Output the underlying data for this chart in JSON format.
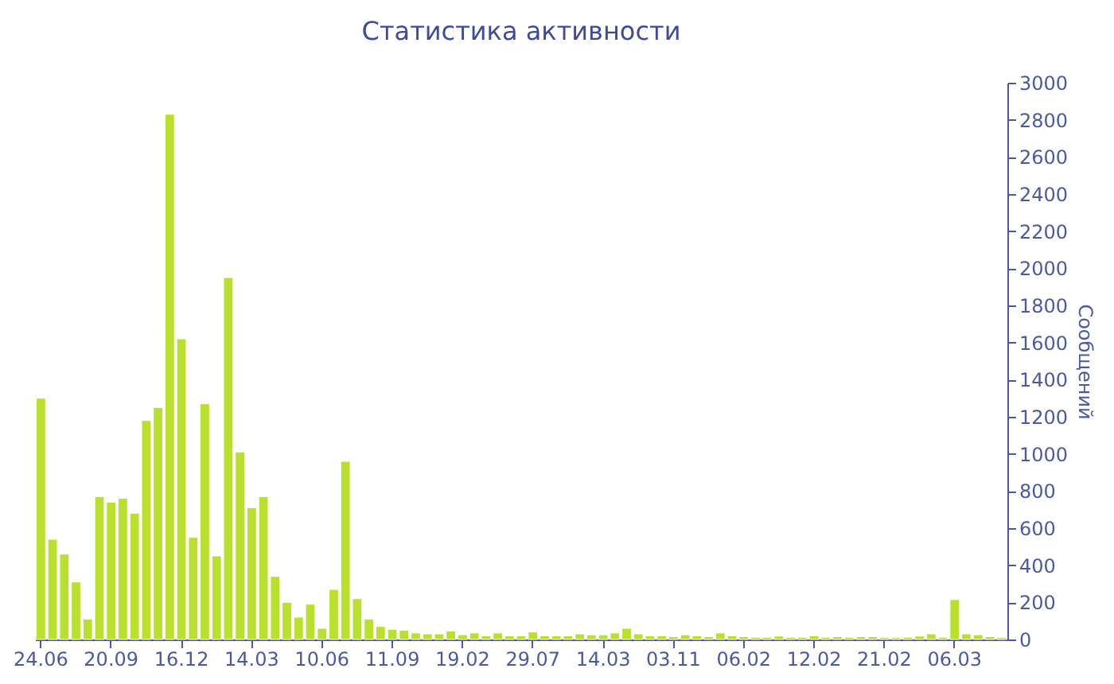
{
  "chart_data": {
    "type": "bar",
    "title": "Статистика активности",
    "ylabel": "Сообщений",
    "categories": [
      "24.06",
      null,
      null,
      null,
      null,
      null,
      "20.09",
      null,
      null,
      null,
      null,
      null,
      "16.12",
      null,
      null,
      null,
      null,
      null,
      "14.03",
      null,
      null,
      null,
      null,
      null,
      "10.06",
      null,
      null,
      null,
      null,
      null,
      "11.09",
      null,
      null,
      null,
      null,
      null,
      "19.02",
      null,
      null,
      null,
      null,
      null,
      "29.07",
      null,
      null,
      null,
      null,
      null,
      "14.03",
      null,
      null,
      null,
      null,
      null,
      "03.11",
      null,
      null,
      null,
      null,
      null,
      "06.02",
      null,
      null,
      null,
      null,
      null,
      "12.02",
      null,
      null,
      null,
      null,
      null,
      "21.02",
      null,
      null,
      null,
      null,
      null,
      "06.03",
      null,
      null,
      null,
      null
    ],
    "values": [
      1300,
      540,
      460,
      310,
      110,
      770,
      740,
      760,
      680,
      1180,
      1250,
      2830,
      1620,
      550,
      1270,
      450,
      1950,
      1010,
      710,
      770,
      340,
      200,
      120,
      190,
      60,
      270,
      960,
      220,
      110,
      70,
      55,
      50,
      35,
      30,
      30,
      45,
      25,
      35,
      20,
      35,
      20,
      20,
      40,
      20,
      20,
      20,
      30,
      25,
      25,
      35,
      60,
      30,
      20,
      20,
      15,
      25,
      20,
      15,
      35,
      20,
      15,
      12,
      12,
      18,
      12,
      12,
      20,
      12,
      15,
      12,
      15,
      15,
      10,
      10,
      12,
      18,
      30,
      12,
      215,
      30,
      25,
      15,
      10
    ],
    "color": "#b9e02d",
    "ylim": [
      0,
      3000
    ],
    "yticks": [
      0,
      200,
      400,
      600,
      800,
      1000,
      1200,
      1400,
      1600,
      1800,
      2000,
      2200,
      2400,
      2600,
      2800,
      3000
    ],
    "grid": false
  }
}
